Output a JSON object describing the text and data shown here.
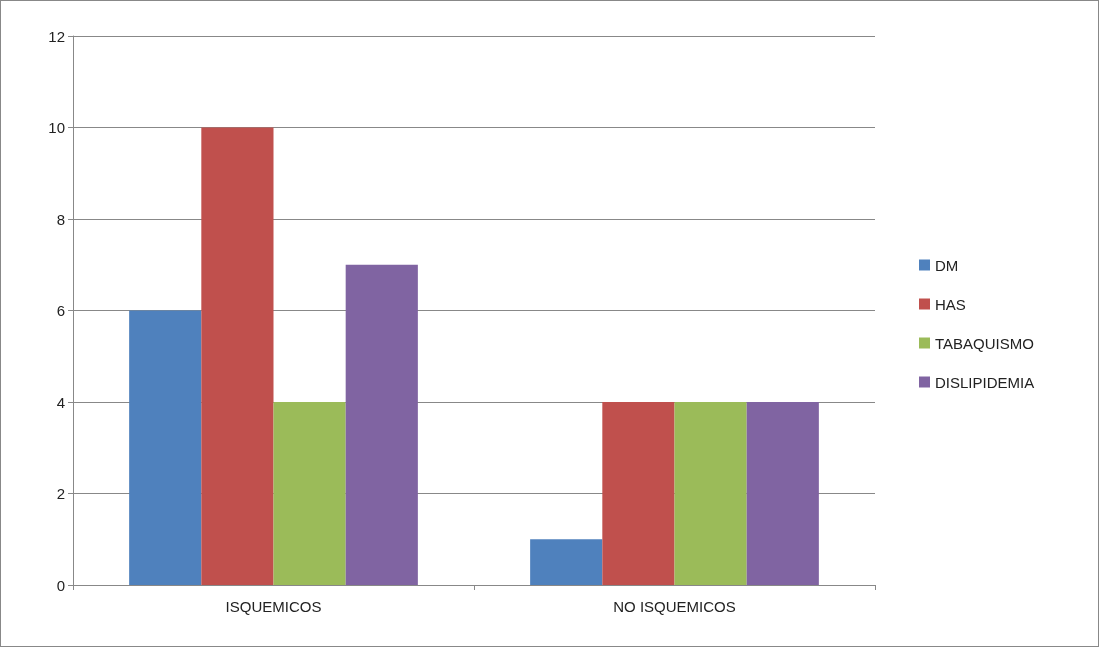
{
  "chart_data": {
    "type": "bar",
    "categories": [
      "ISQUEMICOS",
      "NO ISQUEMICOS"
    ],
    "series": [
      {
        "name": "DM",
        "color": "#4f81bd",
        "values": [
          6,
          1
        ]
      },
      {
        "name": "HAS",
        "color": "#c0504d",
        "values": [
          10,
          4
        ]
      },
      {
        "name": "TABAQUISMO",
        "color": "#9bbb59",
        "values": [
          4,
          4
        ]
      },
      {
        "name": "DISLIPIDEMIA",
        "color": "#8064a2",
        "values": [
          7,
          4
        ]
      }
    ],
    "ylim": [
      0,
      12
    ],
    "yticks": [
      0,
      2,
      4,
      6,
      8,
      10,
      12
    ],
    "grid": "y",
    "legend": "right"
  }
}
